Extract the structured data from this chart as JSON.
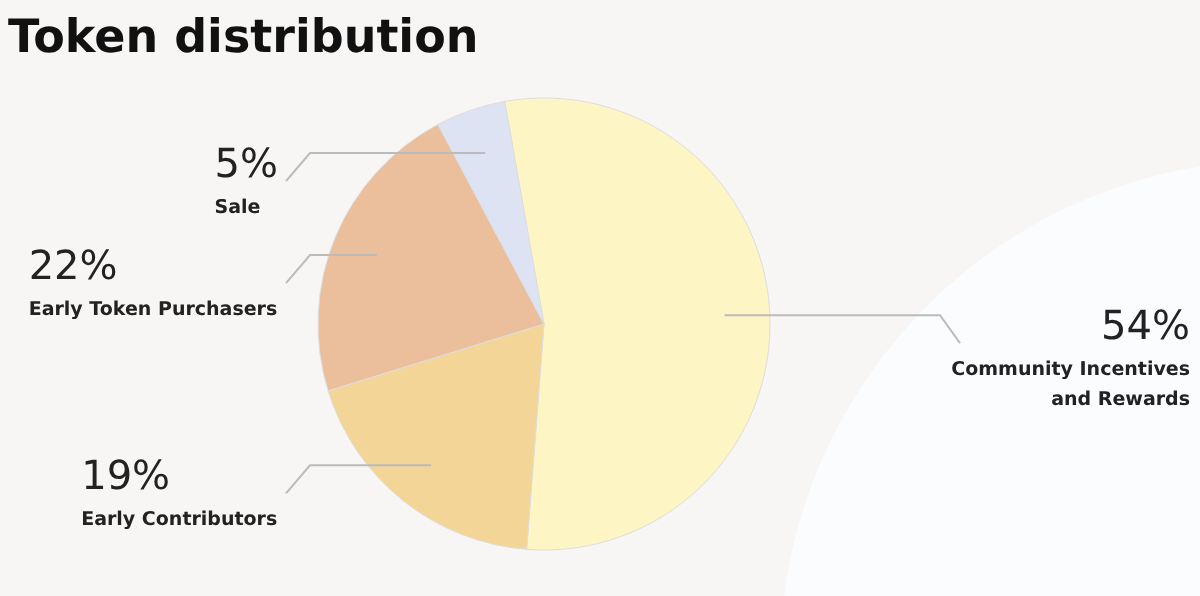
{
  "chart_data": {
    "type": "pie",
    "title": "Token distribution",
    "categories": [
      "Community Incentives and Rewards",
      "Early Contributors",
      "Early Token Purchasers",
      "Sale"
    ],
    "values": [
      54,
      19,
      22,
      5
    ],
    "colors": [
      "#fdf6c4",
      "#f3d597",
      "#ecbf9c",
      "#dde3f2"
    ],
    "value_labels": [
      "54%",
      "19%",
      "22%",
      "5%"
    ]
  }
}
